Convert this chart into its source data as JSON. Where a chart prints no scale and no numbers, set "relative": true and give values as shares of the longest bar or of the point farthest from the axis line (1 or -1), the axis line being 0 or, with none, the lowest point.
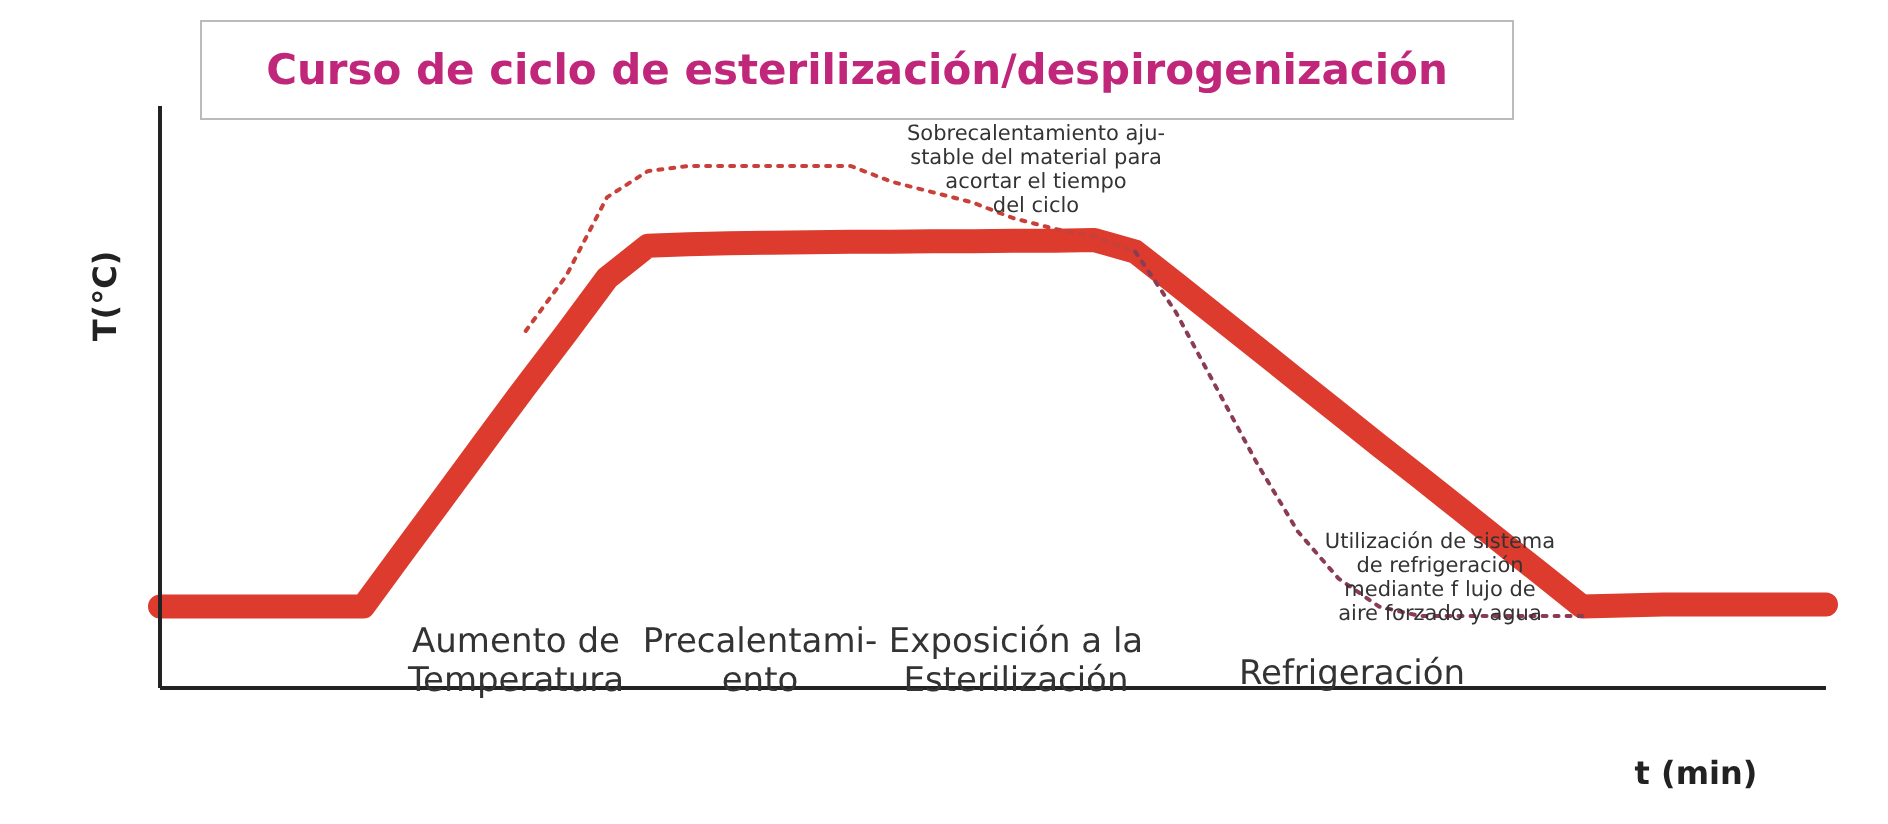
{
  "chart_data": {
    "type": "line",
    "relative": true,
    "title": "Curso de ciclo de esterilización/despirogenización",
    "xlabel": "t (min)",
    "ylabel": "T(°C)",
    "marker": "none",
    "categories": [
      null,
      null,
      null,
      null,
      null,
      null,
      null,
      null,
      null,
      null,
      null,
      null,
      null,
      null,
      null,
      null,
      null,
      null,
      null,
      null,
      null,
      null,
      null,
      null,
      null,
      null,
      null,
      null,
      null,
      null,
      null,
      null,
      null,
      null,
      null,
      null,
      null,
      null,
      null,
      null,
      null,
      null
    ],
    "series": [
      {
        "color": "#dc3b2e",
        "line_style": "solid",
        "values": [
          0.156,
          0.156,
          0.156,
          0.156,
          0.156,
          0.156,
          0.262,
          0.367,
          0.473,
          0.578,
          0.68,
          0.785,
          0.847,
          0.85,
          0.852,
          0.853,
          0.854,
          0.855,
          0.855,
          0.856,
          0.856,
          0.857,
          0.857,
          0.858,
          0.836,
          0.775,
          0.713,
          0.651,
          0.589,
          0.527,
          0.465,
          0.404,
          0.342,
          0.28,
          0.218,
          0.156,
          0.158,
          0.16,
          0.16,
          0.16,
          0.16,
          0.16
        ]
      },
      {
        "color": "#c8403a",
        "line_style": "dotted",
        "values": [
          null,
          null,
          null,
          null,
          null,
          null,
          null,
          null,
          null,
          0.684,
          0.79,
          0.94,
          0.99,
          1,
          1,
          1,
          1,
          1,
          0.97,
          0.95,
          0.93,
          0.9,
          0.88,
          0.865,
          0.836,
          null,
          null,
          null,
          null,
          null,
          null,
          null,
          null,
          null,
          null,
          null,
          null,
          null,
          null,
          null,
          null,
          null
        ]
      },
      {
        "color": "#8a3c52",
        "line_style": "dotted",
        "values": [
          null,
          null,
          null,
          null,
          null,
          null,
          null,
          null,
          null,
          null,
          null,
          null,
          null,
          null,
          null,
          null,
          null,
          null,
          null,
          null,
          null,
          null,
          null,
          null,
          0.836,
          0.72,
          0.575,
          0.43,
          0.3,
          0.21,
          0.156,
          0.138,
          0.138,
          0.138,
          0.138,
          0.138,
          null,
          null,
          null,
          null,
          null,
          null
        ]
      }
    ],
    "annotations": [
      "Aumento de\nTemperatura",
      "Precalentami-\nento",
      "Exposición a la\nEsterilización",
      "Refrigeración",
      "Sobrecalentamiento aju-\nstable del material para\nacortar el tiempo\ndel ciclo",
      "Utilización de sistema\nde refrigeración\nmediante f lujo de\naire forzado y agua"
    ]
  }
}
